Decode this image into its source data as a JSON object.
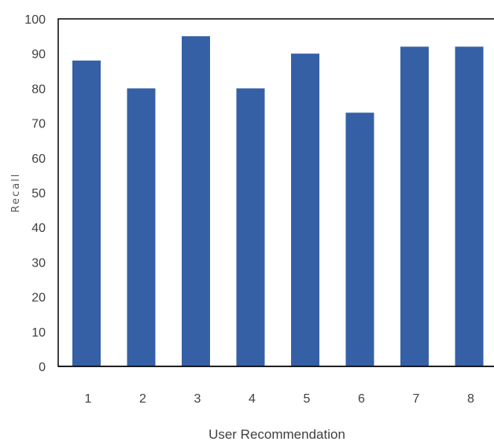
{
  "chart_data": {
    "type": "bar",
    "title": "",
    "xlabel": "User Recommendation",
    "ylabel": "Recall",
    "categories": [
      "1",
      "2",
      "3",
      "4",
      "5",
      "6",
      "7",
      "8"
    ],
    "values": [
      88,
      80,
      95,
      80,
      90,
      73,
      92,
      92
    ],
    "ylim": [
      0,
      100
    ],
    "yticks": [
      "0",
      "10",
      "20",
      "30",
      "40",
      "50",
      "60",
      "70",
      "80",
      "90",
      "100"
    ],
    "grid": false,
    "legend": "none",
    "bar_color": "#3560A6",
    "axis_color": "#000000",
    "text_color": "#404040"
  }
}
